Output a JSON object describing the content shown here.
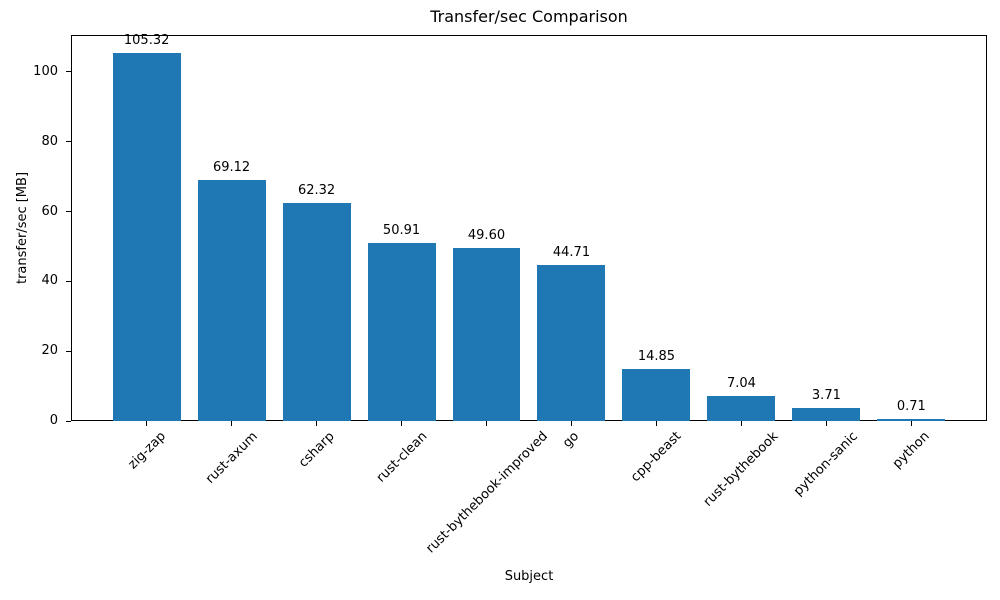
{
  "chart_data": {
    "type": "bar",
    "title": "Transfer/sec Comparison",
    "xlabel": "Subject",
    "ylabel": "transfer/sec [MB]",
    "categories": [
      "zig-zap",
      "rust-axum",
      "csharp",
      "rust-clean",
      "rust-bythebook-improved",
      "go",
      "cpp-beast",
      "rust-bythebook",
      "python-sanic",
      "python"
    ],
    "values": [
      105.32,
      69.12,
      62.32,
      50.91,
      49.6,
      44.71,
      14.85,
      7.04,
      3.71,
      0.71
    ],
    "value_labels": [
      "105.32",
      "69.12",
      "62.32",
      "50.91",
      "49.60",
      "44.71",
      "14.85",
      "7.04",
      "3.71",
      "0.71"
    ],
    "yticks": [
      0,
      20,
      40,
      60,
      80,
      100
    ],
    "ylim": [
      0,
      110.6
    ],
    "bar_color": "#1f77b4",
    "grid": false,
    "legend": null,
    "tick_label_rotation_deg": 45
  }
}
